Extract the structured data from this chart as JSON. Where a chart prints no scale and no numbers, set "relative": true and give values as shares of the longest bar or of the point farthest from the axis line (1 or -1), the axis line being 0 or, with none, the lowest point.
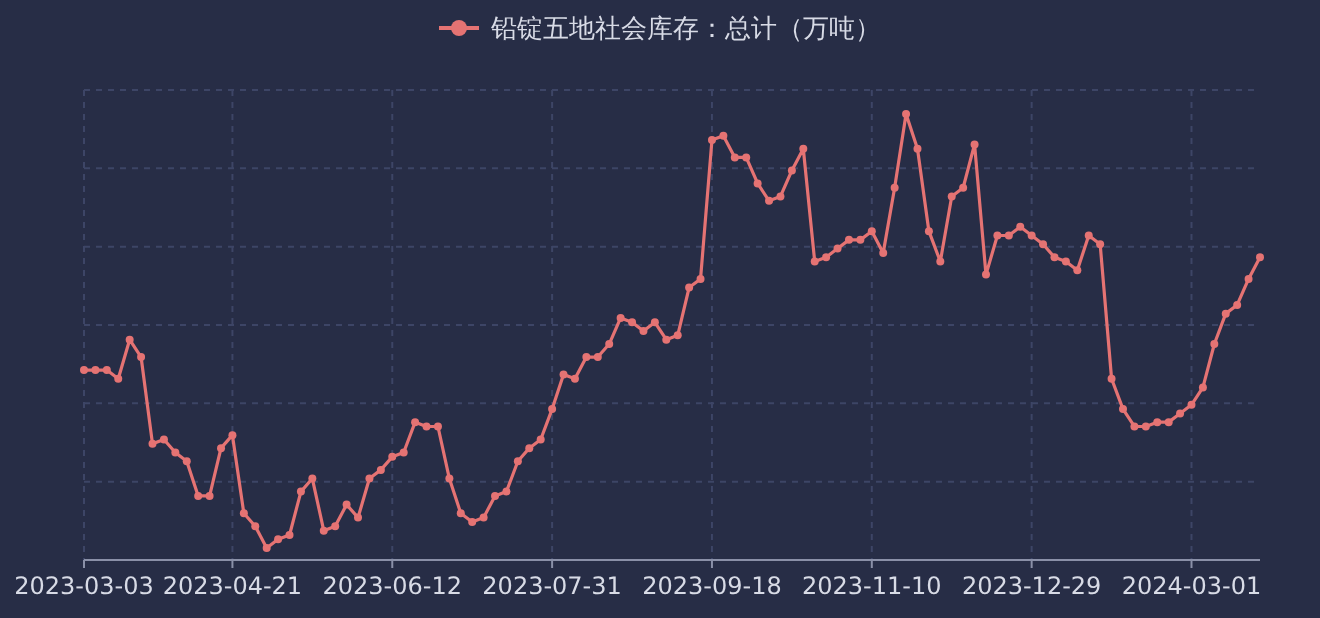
{
  "chart_data": {
    "type": "line",
    "relative": true,
    "grid": true,
    "legend": "top",
    "marker": "circle",
    "line_style": "solid",
    "categories": [
      "2023-03-03",
      null,
      null,
      null,
      null,
      null,
      null,
      null,
      null,
      null,
      null,
      null,
      null,
      "2023-04-21",
      null,
      null,
      null,
      null,
      null,
      null,
      null,
      null,
      null,
      null,
      null,
      null,
      null,
      "2023-06-12",
      null,
      null,
      null,
      null,
      null,
      null,
      null,
      null,
      null,
      null,
      null,
      null,
      null,
      "2023-07-31",
      null,
      null,
      null,
      null,
      null,
      null,
      null,
      null,
      null,
      null,
      null,
      null,
      null,
      "2023-09-18",
      null,
      null,
      null,
      null,
      null,
      null,
      null,
      null,
      null,
      null,
      null,
      null,
      null,
      "2023-11-10",
      null,
      null,
      null,
      null,
      null,
      null,
      null,
      null,
      null,
      null,
      null,
      null,
      null,
      "2023-12-29",
      null,
      null,
      null,
      null,
      null,
      null,
      null,
      null,
      null,
      null,
      null,
      null,
      null,
      "2024-03-01",
      null,
      null,
      null,
      null,
      null,
      null
    ],
    "series": [
      {
        "name": "铅锭五地社会库存：总计（万吨）",
        "color": "#e57373",
        "values": [
          0.41,
          0.41,
          0.41,
          0.39,
          0.48,
          0.44,
          0.24,
          0.25,
          0.22,
          0.2,
          0.12,
          0.12,
          0.23,
          0.26,
          0.08,
          0.05,
          0,
          0.02,
          0.03,
          0.13,
          0.16,
          0.04,
          0.05,
          0.1,
          0.07,
          0.16,
          0.18,
          0.21,
          0.22,
          0.29,
          0.28,
          0.28,
          0.16,
          0.08,
          0.06,
          0.07,
          0.12,
          0.13,
          0.2,
          0.23,
          0.25,
          0.32,
          0.4,
          0.39,
          0.44,
          0.44,
          0.47,
          0.53,
          0.52,
          0.5,
          0.52,
          0.48,
          0.49,
          0.6,
          0.62,
          0.94,
          0.95,
          0.9,
          0.9,
          0.84,
          0.8,
          0.81,
          0.87,
          0.92,
          0.66,
          0.67,
          0.69,
          0.71,
          0.71,
          0.73,
          0.68,
          0.83,
          1,
          0.92,
          0.73,
          0.66,
          0.81,
          0.83,
          0.93,
          0.63,
          0.72,
          0.72,
          0.74,
          0.72,
          0.7,
          0.67,
          0.66,
          0.64,
          0.72,
          0.7,
          0.39,
          0.32,
          0.28,
          0.28,
          0.29,
          0.29,
          0.31,
          0.33,
          0.37,
          0.47,
          0.54,
          0.56,
          0.62,
          0.67
        ]
      }
    ]
  }
}
